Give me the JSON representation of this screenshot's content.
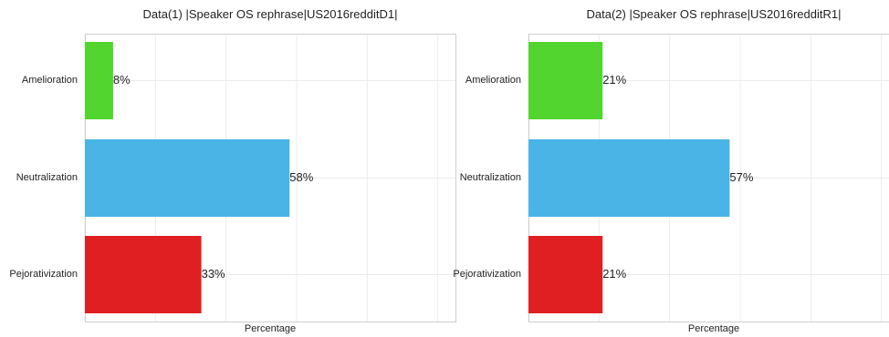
{
  "chart_data": [
    {
      "type": "bar",
      "orientation": "horizontal",
      "title": "Data(1) |Speaker OS rephrase|US2016redditD1|",
      "xlabel": "Percentage",
      "categories": [
        "Amelioration",
        "Neutralization",
        "Pejorativization"
      ],
      "values": [
        8,
        58,
        33
      ],
      "data_labels": [
        "8%",
        "58%",
        "33%"
      ],
      "colors": [
        "#52d62f",
        "#4ab4e6",
        "#e01f22"
      ],
      "xlim": [
        0,
        105
      ],
      "grid": true
    },
    {
      "type": "bar",
      "orientation": "horizontal",
      "title": "Data(2) |Speaker OS rephrase|US2016redditR1|",
      "xlabel": "Percentage",
      "categories": [
        "Amelioration",
        "Neutralization",
        "Pejorativization"
      ],
      "values": [
        21,
        57,
        21
      ],
      "data_labels": [
        "21%",
        "57%",
        "21%"
      ],
      "colors": [
        "#52d62f",
        "#4ab4e6",
        "#e01f22"
      ],
      "xlim": [
        0,
        105
      ],
      "grid": true
    }
  ]
}
